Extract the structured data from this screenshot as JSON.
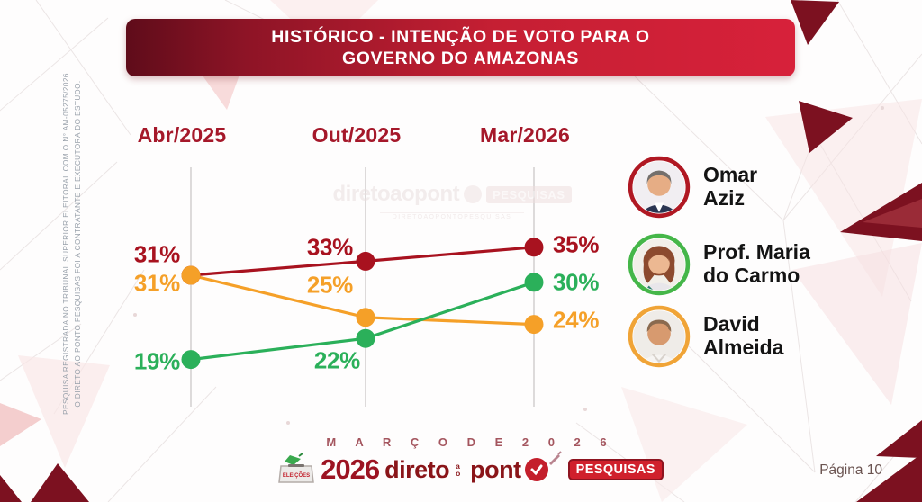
{
  "banner": {
    "title_line1": "HISTÓRICO - INTENÇÃO DE VOTO PARA O",
    "title_line2": "GOVERNO DO AMAZONAS"
  },
  "side_note": {
    "line1": "PESQUISA REGISTRADA NO TRIBUNAL SUPERIOR ELEITORAL COM O N° AM-05275/2026",
    "line2": "O DIRETO AO PONTO PESQUISAS FOI A CONTRATANTE E EXECUTORA DO ESTUDO."
  },
  "chart_data": {
    "type": "line",
    "title": "Histórico - Intenção de voto para o Governo do Amazonas",
    "categories": [
      "Abr/2025",
      "Out/2025",
      "Mar/2026"
    ],
    "series": [
      {
        "name": "Omar Aziz",
        "color": "#a8121f",
        "values": [
          31,
          33,
          35
        ]
      },
      {
        "name": "David Almeida",
        "color": "#f5a028",
        "values": [
          31,
          25,
          24
        ]
      },
      {
        "name": "Prof. Maria do Carmo",
        "color": "#2bb05a",
        "values": [
          19,
          22,
          30
        ]
      }
    ],
    "unit": "%",
    "ylim": [
      15,
      40
    ],
    "grid": "vertical-category-lines-only",
    "legend_position": "right"
  },
  "legend": [
    {
      "label_line1": "Omar",
      "label_line2": "Aziz",
      "ring_color": "#b01823",
      "avatar": "omar"
    },
    {
      "label_line1": "Prof. Maria",
      "label_line2": "do Carmo",
      "ring_color": "#45b649",
      "avatar": "maria"
    },
    {
      "label_line1": "David",
      "label_line2": "Almeida",
      "ring_color": "#f0a437",
      "avatar": "david"
    }
  ],
  "watermark": {
    "brand": "diretoaopont",
    "badge": "PESQUISAS",
    "sub": "DIRETOAOPONTOPESQUISAS"
  },
  "footer": {
    "date_label": "M A R Ç O   D E   2 0 2 6",
    "page_label": "Página 10",
    "logo": {
      "ballot_label": "ELEIÇÕES",
      "year": "2026",
      "brand_part1": "direto",
      "brand_tiny": "ao",
      "brand_part2": "pont",
      "badge": "PESQUISAS"
    }
  }
}
